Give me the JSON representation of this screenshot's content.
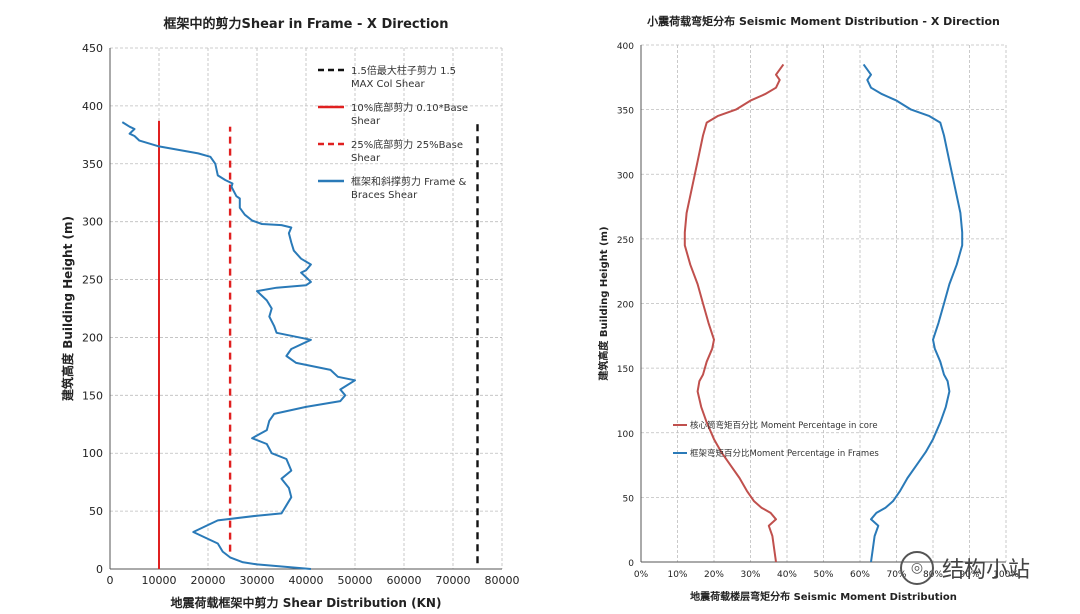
{
  "watermark": {
    "text": "结构小站"
  },
  "chart_data": [
    {
      "id": "left",
      "type": "line",
      "title": "框架中的剪力Shear in Frame - X Direction",
      "xlabel": "地震荷载框架中剪力 Shear Distribution (KN)",
      "ylabel": "建筑高度 Building Height (m)",
      "xlim": [
        0,
        80000
      ],
      "ylim": [
        0,
        450
      ],
      "xticks": [
        0,
        10000,
        20000,
        30000,
        40000,
        50000,
        60000,
        70000,
        80000
      ],
      "yticks": [
        0,
        50,
        100,
        150,
        200,
        250,
        300,
        350,
        400,
        450
      ],
      "grid": true,
      "legend_position": "top-right",
      "series": [
        {
          "name": "1.5倍最大柱子剪力 1.5 MAX Col Shear",
          "legend_lines": [
            "1.5倍最大柱子剪力 1.5",
            "MAX Col Shear"
          ],
          "color": "#111111",
          "dash": "dashed",
          "points": [
            [
              75000,
              5
            ],
            [
              75000,
              388
            ]
          ]
        },
        {
          "name": "10%底部剪力 0.10*Base Shear",
          "legend_lines": [
            "10%底部剪力 0.10*Base",
            "Shear"
          ],
          "color": "#e02020",
          "dash": "solid",
          "points": [
            [
              10000,
              0
            ],
            [
              10000,
              387
            ]
          ]
        },
        {
          "name": "25%底部剪力 25%Base Shear",
          "legend_lines": [
            "25%底部剪力 25%Base",
            "Shear"
          ],
          "color": "#e02020",
          "dash": "dashed",
          "points": [
            [
              24500,
              15
            ],
            [
              24500,
              382
            ]
          ]
        },
        {
          "name": "框架和斜撑剪力 Frame & Braces Shear",
          "legend_lines": [
            "框架和斜撑剪力 Frame &",
            "Braces Shear"
          ],
          "color": "#2a7ab8",
          "dash": "solid",
          "points": [
            [
              41000,
              0
            ],
            [
              30000,
              4
            ],
            [
              27000,
              6
            ],
            [
              24500,
              10
            ],
            [
              23000,
              15
            ],
            [
              22000,
              22
            ],
            [
              19000,
              28
            ],
            [
              17000,
              32
            ],
            [
              20000,
              38
            ],
            [
              22000,
              42
            ],
            [
              30000,
              46
            ],
            [
              35000,
              48
            ],
            [
              36000,
              55
            ],
            [
              37000,
              62
            ],
            [
              36500,
              70
            ],
            [
              35000,
              78
            ],
            [
              37000,
              85
            ],
            [
              36000,
              95
            ],
            [
              33000,
              100
            ],
            [
              32000,
              108
            ],
            [
              29000,
              113
            ],
            [
              32000,
              120
            ],
            [
              32500,
              128
            ],
            [
              33500,
              134
            ],
            [
              40000,
              140
            ],
            [
              47000,
              145
            ],
            [
              48000,
              150
            ],
            [
              47000,
              155
            ],
            [
              50000,
              163
            ],
            [
              46500,
              166
            ],
            [
              45000,
              172
            ],
            [
              38000,
              178
            ],
            [
              36000,
              184
            ],
            [
              37000,
              190
            ],
            [
              41000,
              198
            ],
            [
              34000,
              204
            ],
            [
              33500,
              210
            ],
            [
              32500,
              218
            ],
            [
              33000,
              225
            ],
            [
              32000,
              232
            ],
            [
              30000,
              240
            ],
            [
              34000,
              243
            ],
            [
              40000,
              245
            ],
            [
              41000,
              248
            ],
            [
              40000,
              252
            ],
            [
              39000,
              256
            ],
            [
              40000,
              258
            ],
            [
              41000,
              263
            ],
            [
              39000,
              268
            ],
            [
              37500,
              275
            ],
            [
              37000,
              282
            ],
            [
              36500,
              290
            ],
            [
              37000,
              295
            ],
            [
              35000,
              297
            ],
            [
              31000,
              298
            ],
            [
              29000,
              301
            ],
            [
              27500,
              306
            ],
            [
              26500,
              312
            ],
            [
              26500,
              320
            ],
            [
              25800,
              322
            ],
            [
              24800,
              330
            ],
            [
              25000,
              333
            ],
            [
              23500,
              336
            ],
            [
              22000,
              340
            ],
            [
              21500,
              350
            ],
            [
              20500,
              356
            ],
            [
              18000,
              359
            ],
            [
              14000,
              362
            ],
            [
              10000,
              365
            ],
            [
              6000,
              370
            ],
            [
              5000,
              374
            ],
            [
              4000,
              376
            ],
            [
              5000,
              380
            ],
            [
              4000,
              382
            ],
            [
              2500,
              386
            ]
          ]
        }
      ]
    },
    {
      "id": "right",
      "type": "line",
      "title": "小震荷载弯矩分布  Seismic Moment  Distribution - X Direction",
      "xlabel": "地震荷载楼层弯矩分布 Seismic Moment Distribution",
      "ylabel": "建筑高度 Building Height (m)",
      "xlim": [
        0,
        100
      ],
      "ylim": [
        0,
        400
      ],
      "xticks": [
        0,
        10,
        20,
        30,
        40,
        50,
        60,
        70,
        80,
        90,
        100
      ],
      "xtick_labels": [
        "0%",
        "10%",
        "20%",
        "30%",
        "40%",
        "50%",
        "60%",
        "70%",
        "80%",
        "90%",
        "100%"
      ],
      "yticks": [
        0,
        50,
        100,
        150,
        200,
        250,
        300,
        350,
        400
      ],
      "grid": true,
      "legend_position": "lower-left",
      "series": [
        {
          "name": "核心筒弯矩百分比 Moment Percentage in  core",
          "color": "#c0504d",
          "dash": "solid",
          "points": [
            [
              37,
              0
            ],
            [
              36.5,
              10
            ],
            [
              36,
              20
            ],
            [
              35,
              28
            ],
            [
              37,
              33
            ],
            [
              35.5,
              38
            ],
            [
              33,
              42
            ],
            [
              31,
              47
            ],
            [
              29,
              55
            ],
            [
              27,
              65
            ],
            [
              24.5,
              75
            ],
            [
              22,
              85
            ],
            [
              20,
              95
            ],
            [
              18,
              108
            ],
            [
              16.5,
              120
            ],
            [
              15.5,
              132
            ],
            [
              16,
              140
            ],
            [
              17,
              145
            ],
            [
              18,
              155
            ],
            [
              19.5,
              165
            ],
            [
              20,
              172
            ],
            [
              18.5,
              185
            ],
            [
              17,
              200
            ],
            [
              15.5,
              215
            ],
            [
              13.5,
              230
            ],
            [
              12,
              245
            ],
            [
              12,
              255
            ],
            [
              12.5,
              270
            ],
            [
              14,
              290
            ],
            [
              15.5,
              310
            ],
            [
              17,
              330
            ],
            [
              18,
              340
            ],
            [
              21,
              345
            ],
            [
              26,
              350
            ],
            [
              30,
              357
            ],
            [
              34,
              362
            ],
            [
              37,
              367
            ],
            [
              38,
              373
            ],
            [
              37,
              377
            ],
            [
              39,
              385
            ]
          ]
        },
        {
          "name": "框架弯矩百分比Moment Percentage in Frames",
          "color": "#2a7ab8",
          "dash": "solid",
          "points": [
            [
              63,
              0
            ],
            [
              63.5,
              10
            ],
            [
              64,
              20
            ],
            [
              65,
              28
            ],
            [
              63,
              33
            ],
            [
              64.5,
              38
            ],
            [
              67,
              42
            ],
            [
              69,
              47
            ],
            [
              71,
              55
            ],
            [
              73,
              65
            ],
            [
              75.5,
              75
            ],
            [
              78,
              85
            ],
            [
              80,
              95
            ],
            [
              82,
              108
            ],
            [
              83.5,
              120
            ],
            [
              84.5,
              132
            ],
            [
              84,
              140
            ],
            [
              83,
              145
            ],
            [
              82,
              155
            ],
            [
              80.5,
              165
            ],
            [
              80,
              172
            ],
            [
              81.5,
              185
            ],
            [
              83,
              200
            ],
            [
              84.5,
              215
            ],
            [
              86.5,
              230
            ],
            [
              88,
              245
            ],
            [
              88,
              255
            ],
            [
              87.5,
              270
            ],
            [
              86,
              290
            ],
            [
              84.5,
              310
            ],
            [
              83,
              330
            ],
            [
              82,
              340
            ],
            [
              79,
              345
            ],
            [
              74,
              350
            ],
            [
              70,
              357
            ],
            [
              66,
              362
            ],
            [
              63,
              367
            ],
            [
              62,
              373
            ],
            [
              63,
              377
            ],
            [
              61,
              385
            ]
          ]
        }
      ]
    }
  ]
}
